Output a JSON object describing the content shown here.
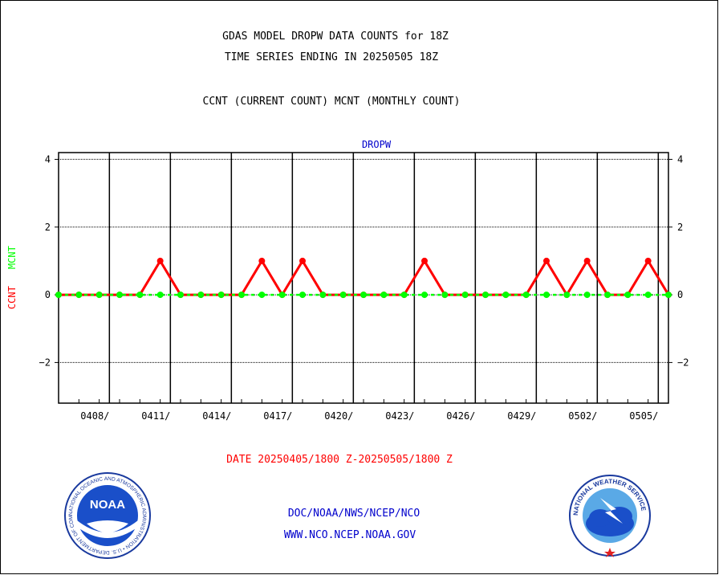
{
  "header": {
    "title_line1": "GDAS MODEL DROPW DATA COUNTS for 18Z",
    "title_line2": "TIME SERIES ENDING IN 20250505 18Z",
    "subtitle": "CCNT (CURRENT COUNT) MCNT (MONTHLY COUNT)"
  },
  "chart_data": {
    "type": "line",
    "title": "DROPW",
    "ylabel_ccnt": "CCNT",
    "ylabel_mcnt": "MCNT",
    "ylim": [
      -3.2,
      4.2
    ],
    "yticks": [
      4,
      2,
      0,
      -2
    ],
    "ytick_labels": [
      "4",
      "2",
      "0",
      "−2"
    ],
    "xlim": [
      0,
      30
    ],
    "x_tick_labels": [
      "0408/",
      "0411/",
      "0414/",
      "0417/",
      "0420/",
      "0423/",
      "0426/",
      "0429/",
      "0502/",
      "0505/"
    ],
    "x_tick_positions": [
      2.5,
      5.5,
      8.5,
      11.5,
      14.5,
      17.5,
      20.5,
      23.5,
      26.5,
      29.5
    ],
    "grid": true,
    "series": [
      {
        "name": "CCNT",
        "color": "#ff0000",
        "x": [
          0,
          1,
          2,
          3,
          4,
          5,
          6,
          7,
          8,
          9,
          10,
          11,
          12,
          13,
          14,
          15,
          16,
          17,
          18,
          19,
          20,
          21,
          22,
          23,
          24,
          25,
          26,
          27,
          28,
          29,
          30
        ],
        "values": [
          0,
          0,
          0,
          0,
          0,
          1,
          0,
          0,
          0,
          0,
          1,
          0,
          1,
          0,
          0,
          0,
          0,
          0,
          1,
          0,
          0,
          0,
          0,
          0,
          1,
          0,
          1,
          0,
          0,
          1,
          0
        ]
      },
      {
        "name": "MCNT",
        "color": "#00ff00",
        "x": [
          0,
          1,
          2,
          3,
          4,
          5,
          6,
          7,
          8,
          9,
          10,
          11,
          12,
          13,
          14,
          15,
          16,
          17,
          18,
          19,
          20,
          21,
          22,
          23,
          24,
          25,
          26,
          27,
          28,
          29,
          30
        ],
        "values": [
          0,
          0,
          0,
          0,
          0,
          0,
          0,
          0,
          0,
          0,
          0,
          0,
          0,
          0,
          0,
          0,
          0,
          0,
          0,
          0,
          0,
          0,
          0,
          0,
          0,
          0,
          0,
          0,
          0,
          0,
          0
        ]
      }
    ]
  },
  "footer": {
    "date_range": "DATE 20250405/1800 Z-20250505/1800 Z",
    "org_path": "DOC/NOAA/NWS/NCEP/NCO",
    "website": "WWW.NCO.NCEP.NOAA.GOV"
  },
  "logos": {
    "noaa_label": "NOAA",
    "noaa_ring_text": "NATIONAL OCEANIC AND ATMOSPHERIC ADMINISTRATION • U.S. DEPARTMENT OF COMMERCE •",
    "nws_ring_text": "NATIONAL WEATHER SERVICE"
  },
  "colors": {
    "ccnt": "#ff0000",
    "mcnt": "#00ff00",
    "accent_blue": "#0000cc",
    "date_red": "#ff0000"
  }
}
